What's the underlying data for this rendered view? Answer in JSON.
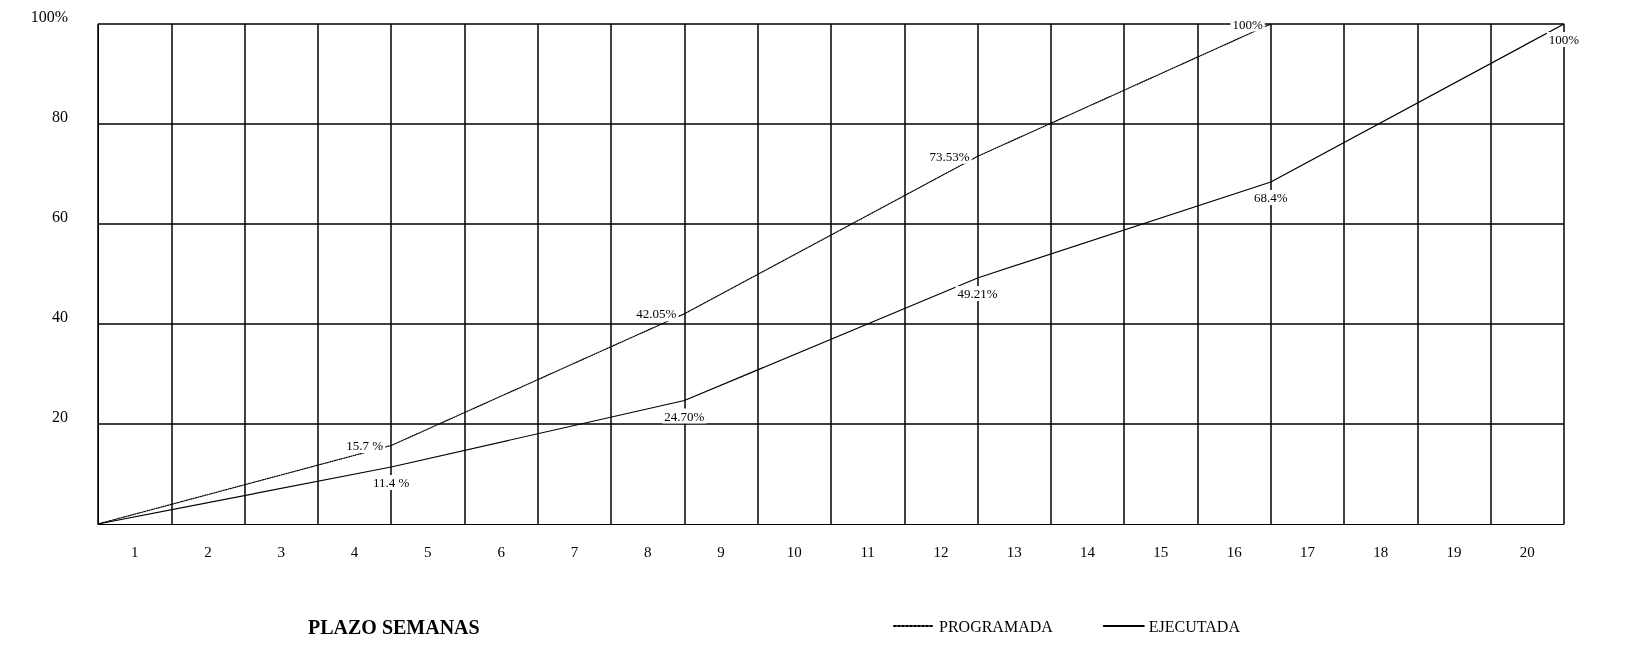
{
  "chart_data": {
    "type": "line",
    "xlabel": "PLAZO SEMANAS",
    "x": [
      0,
      4,
      8,
      12,
      16,
      20
    ],
    "xlim": [
      0,
      20
    ],
    "xticks": [
      {
        "value": 0.5,
        "label": "1"
      },
      {
        "value": 1.5,
        "label": "2"
      },
      {
        "value": 2.5,
        "label": "3"
      },
      {
        "value": 3.5,
        "label": "4"
      },
      {
        "value": 4.5,
        "label": "5"
      },
      {
        "value": 5.5,
        "label": "6"
      },
      {
        "value": 6.5,
        "label": "7"
      },
      {
        "value": 7.5,
        "label": "8"
      },
      {
        "value": 8.5,
        "label": "9"
      },
      {
        "value": 9.5,
        "label": "10"
      },
      {
        "value": 10.5,
        "label": "11"
      },
      {
        "value": 11.5,
        "label": "12"
      },
      {
        "value": 12.5,
        "label": "13"
      },
      {
        "value": 13.5,
        "label": "14"
      },
      {
        "value": 14.5,
        "label": "15"
      },
      {
        "value": 15.5,
        "label": "16"
      },
      {
        "value": 16.5,
        "label": "17"
      },
      {
        "value": 17.5,
        "label": "18"
      },
      {
        "value": 18.5,
        "label": "19"
      },
      {
        "value": 19.5,
        "label": "20"
      }
    ],
    "ylim": [
      0,
      100
    ],
    "yticks": [
      20,
      40,
      60,
      80,
      {
        "value": 100,
        "label": "100%"
      }
    ],
    "series": [
      {
        "name": "PROGRAMADA",
        "color": "#000000",
        "line_style": "dotted",
        "x": [
          0,
          4,
          8,
          12,
          16
        ],
        "values": [
          0,
          15.7,
          42.05,
          73.53,
          100
        ],
        "value_labels": [
          null,
          "15.7 %",
          "42.05%",
          "73.53%",
          "100%"
        ]
      },
      {
        "name": "EJECUTADA",
        "color": "#000000",
        "line_style": "solid",
        "values": [
          0,
          11.4,
          24.7,
          49.21,
          68.4,
          100
        ],
        "value_labels": [
          null,
          "11.4 %",
          "24.70%",
          "49.21%",
          "68.4%",
          "100%"
        ]
      }
    ],
    "grid": true,
    "legend": "bottom",
    "marker": "none"
  }
}
